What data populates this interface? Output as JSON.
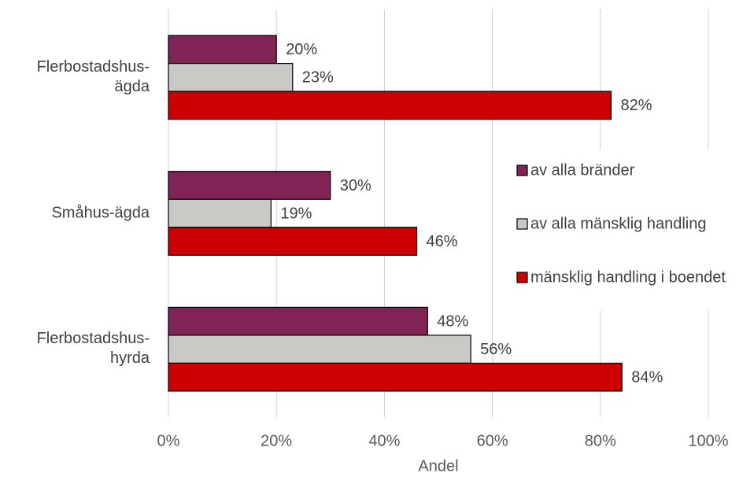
{
  "chart_data": {
    "type": "bar",
    "orientation": "horizontal",
    "categories": [
      "Flerbostadshus-ägda",
      "Småhus-ägda",
      "Flerbostadshus-hyrda"
    ],
    "series": [
      {
        "name": "av alla bränder",
        "color": "#7f2454",
        "values": [
          20,
          30,
          48
        ],
        "value_labels": [
          "20%",
          "30%",
          "48%"
        ]
      },
      {
        "name": "av alla mänsklig handling",
        "color": "#c9c9c5",
        "values": [
          23,
          19,
          56
        ],
        "value_labels": [
          "23%",
          "19%",
          "56%"
        ]
      },
      {
        "name": "mänsklig handling i boendet",
        "color": "#cc0000",
        "values": [
          82,
          46,
          84
        ],
        "value_labels": [
          "82%",
          "46%",
          "84%"
        ]
      }
    ],
    "xlabel": "Andel",
    "xlim": [
      0,
      100
    ],
    "xticks": [
      {
        "value": 0,
        "label": "0%"
      },
      {
        "value": 20,
        "label": "20%"
      },
      {
        "value": 40,
        "label": "40%"
      },
      {
        "value": 60,
        "label": "60%"
      },
      {
        "value": 80,
        "label": "80%"
      },
      {
        "value": 100,
        "label": "100%"
      }
    ],
    "grid": true,
    "legend": "right"
  }
}
